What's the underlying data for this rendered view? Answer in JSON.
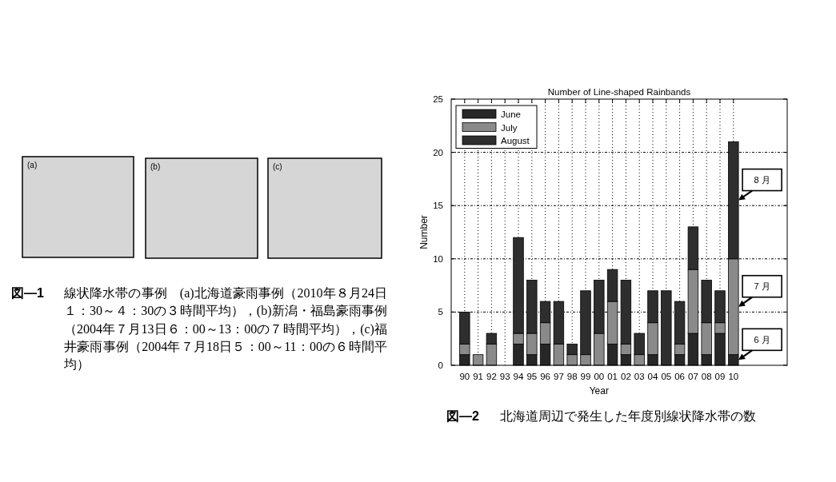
{
  "chart_data": {
    "type": "bar",
    "stacked": true,
    "title": "Number of Line-shaped Rainbands",
    "xlabel": "Year",
    "ylabel": "Number",
    "categories": [
      "90",
      "91",
      "92",
      "93",
      "94",
      "95",
      "96",
      "97",
      "98",
      "99",
      "00",
      "01",
      "02",
      "03",
      "04",
      "05",
      "06",
      "07",
      "08",
      "09",
      "10"
    ],
    "series": [
      {
        "name": "June",
        "color": "#272727",
        "values": [
          1,
          0,
          0,
          0,
          2,
          1,
          2,
          0,
          0,
          0,
          0,
          2,
          1,
          0,
          1,
          0,
          1,
          3,
          1,
          3,
          1
        ]
      },
      {
        "name": "July",
        "color": "#8a8a8a",
        "values": [
          1,
          1,
          2,
          0,
          1,
          2,
          2,
          2,
          1,
          1,
          3,
          4,
          1,
          1,
          3,
          0,
          1,
          6,
          3,
          1,
          9
        ]
      },
      {
        "name": "August",
        "color": "#2e2e2e",
        "values": [
          3,
          0,
          1,
          0,
          9,
          5,
          2,
          4,
          1,
          6,
          5,
          3,
          6,
          2,
          3,
          7,
          4,
          4,
          4,
          3,
          11
        ]
      }
    ],
    "ylim": [
      0,
      25
    ],
    "yticks": [
      0,
      5,
      10,
      15,
      20,
      25
    ],
    "grid": true,
    "legend": "top left",
    "annotations": [
      "8 月",
      "7 月",
      "6 月",
      "図—1",
      "線状降水帯の事例　(a)北海道豪雨事例（2010年８月24日１：30～４：30の３時間平均），(b)新潟・福島豪雨事例（2004年７月13日６：00～13：00の７時間平均），(c)福井豪雨事例（2004年７月18日５：00～11：00の６時間平均）",
      "(a)",
      "(b)",
      "(c)",
      "図—2",
      "北海道周辺で発生した年度別線状降水帯の数"
    ]
  }
}
